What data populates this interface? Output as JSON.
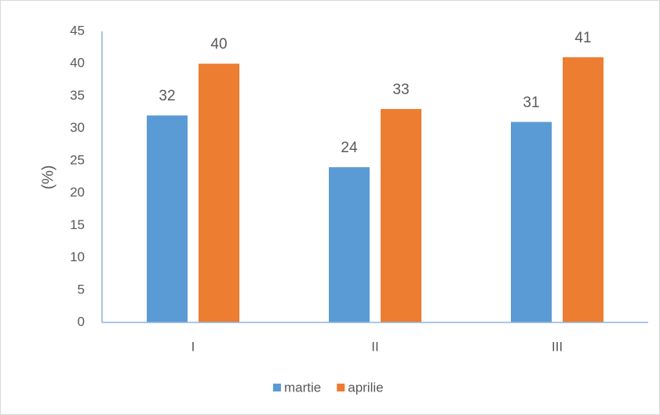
{
  "chart_data": {
    "type": "bar",
    "y_label": "(%)",
    "categories": [
      "I",
      "II",
      "III"
    ],
    "series": [
      {
        "name": "martie",
        "color": "#5b9bd5",
        "values": [
          32,
          24,
          31
        ]
      },
      {
        "name": "aprilie",
        "color": "#ed7d31",
        "values": [
          40,
          33,
          41
        ]
      }
    ],
    "ylim": [
      0,
      45
    ],
    "yticks": [
      0,
      5,
      10,
      15,
      20,
      25,
      30,
      35,
      40,
      45
    ],
    "grid": false,
    "legend": "bottom"
  }
}
